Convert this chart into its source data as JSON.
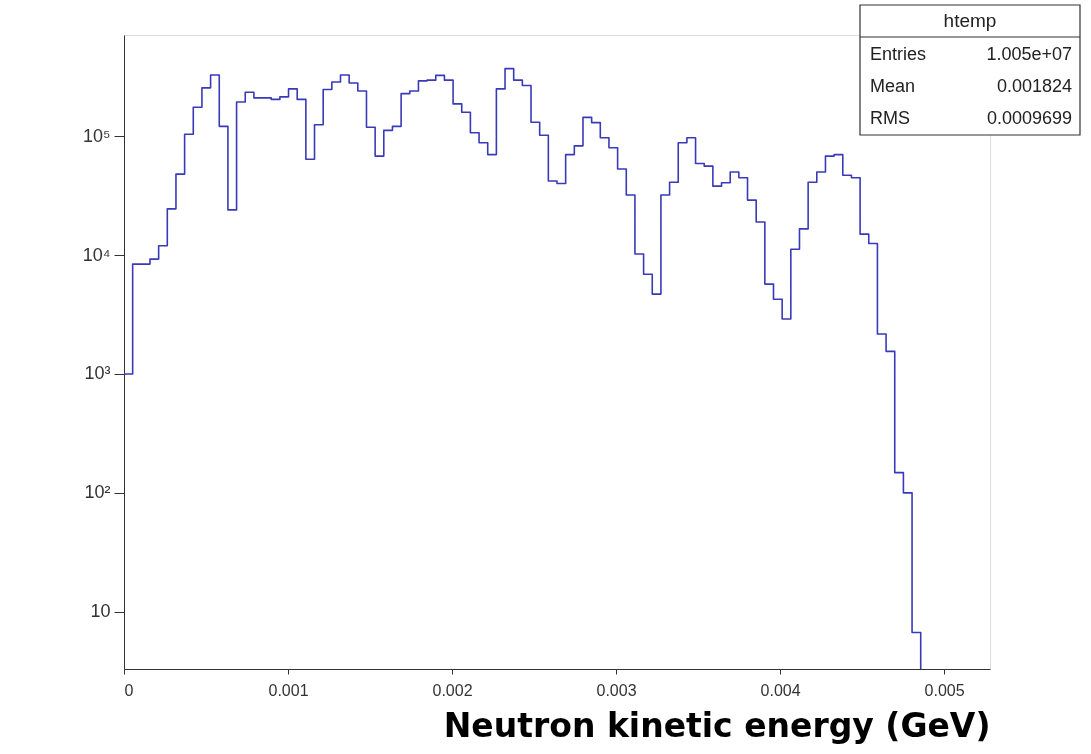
{
  "chart_data": {
    "type": "histogram",
    "xlabel": "Neutron kinetic energy (GeV)",
    "bins": [
      0,
      5.28e-05,
      0.0001056,
      0.0001584,
      0.0002112,
      0.000264,
      0.0003168,
      0.0003696,
      0.0004224,
      0.0004752,
      0.000528,
      0.0005808,
      0.0006336,
      0.0006864,
      0.0007392,
      0.000792,
      0.0008448,
      0.0008976,
      0.0009504,
      0.0010032,
      0.001056,
      0.0011088,
      0.0011616,
      0.0012144,
      0.0012672,
      0.00132,
      0.0013728,
      0.0014256,
      0.0014784,
      0.0015312,
      0.001584,
      0.0016368,
      0.0016896,
      0.0017424,
      0.0017952,
      0.001848,
      0.0019008,
      0.0019536,
      0.0020064,
      0.0020592,
      0.002112,
      0.0021648,
      0.0022176,
      0.0022704,
      0.0023232,
      0.002376,
      0.0024288,
      0.0024816,
      0.0025344,
      0.0025872,
      0.00264,
      0.0026928,
      0.0027456,
      0.0027984,
      0.0028512,
      0.002904,
      0.0029568,
      0.0030096,
      0.0030624,
      0.0031152,
      0.003168,
      0.0032208,
      0.0032736,
      0.0033264,
      0.0033792,
      0.003432,
      0.0034848,
      0.0035376,
      0.0035904,
      0.0036432,
      0.003696,
      0.0037488,
      0.0038016,
      0.0038544,
      0.0039072,
      0.00396,
      0.0040128,
      0.0040656,
      0.0041184,
      0.0041712,
      0.004224,
      0.0042768,
      0.0043296,
      0.0043824,
      0.0044352,
      0.004488,
      0.0045408,
      0.0045936,
      0.0046464,
      0.0046992,
      0.004752,
      0.0048048,
      0.0048576
    ],
    "values": [
      1000,
      8400,
      8400,
      9250,
      12000,
      24500,
      48000,
      104000,
      175000,
      255000,
      327000,
      121000,
      24000,
      194000,
      234000,
      210000,
      210000,
      204000,
      214000,
      250000,
      204000,
      64000,
      125000,
      247000,
      286000,
      327000,
      280000,
      240000,
      119000,
      68000,
      112000,
      121000,
      228000,
      240000,
      292000,
      296000,
      325000,
      296000,
      187000,
      159000,
      107000,
      88000,
      70000,
      250000,
      370000,
      296000,
      267000,
      131000,
      102000,
      42000,
      40000,
      70000,
      83000,
      144000,
      130000,
      97000,
      80000,
      53000,
      32000,
      10200,
      6900,
      4700,
      32000,
      41000,
      88000,
      97000,
      59000,
      56000,
      38000,
      40600,
      50000,
      44700,
      29000,
      19000,
      5700,
      4250,
      2900,
      11200,
      16600,
      41000,
      50000,
      68000,
      70000,
      47000,
      44700,
      15000,
      12500,
      2170,
      1550,
      148,
      100,
      6.7
    ],
    "color": "#3a3ab8",
    "log": "y",
    "xlim": [
      0,
      0.00528
    ],
    "ylim": [
      3.3,
      710000
    ],
    "xticks": [
      0,
      0.001,
      0.002,
      0.003,
      0.004,
      0.005
    ],
    "yticks": [
      10,
      {
        "value": 100,
        "label": "10²"
      },
      {
        "value": 1000,
        "label": "10³"
      },
      {
        "value": 10000,
        "label": "10⁴"
      },
      {
        "value": 100000,
        "label": "10⁵"
      }
    ],
    "grid": false,
    "annotations": [
      "htemp",
      "Entries",
      "1.005e+07",
      "Mean",
      "0.001824",
      "RMS",
      "0.0009699"
    ]
  }
}
